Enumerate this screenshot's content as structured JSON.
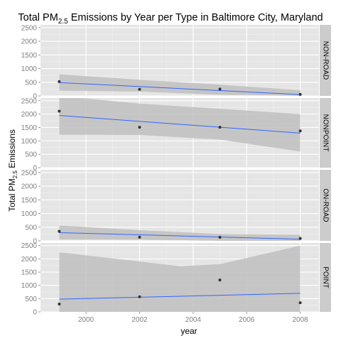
{
  "chart_data": {
    "type": "scatter",
    "title": {
      "prefix": "Total PM",
      "subscript": "2.5",
      "suffix": " Emissions by Year per Type in Baltimore City, Maryland"
    },
    "xlabel": "year",
    "ylabel": {
      "prefix": "Total PM",
      "subscript": "2.5",
      "suffix": " Emissions"
    },
    "x_ticks": [
      2000,
      2002,
      2004,
      2006,
      2008
    ],
    "xlim": [
      1998.3,
      2008.7
    ],
    "ylim": [
      0,
      2600
    ],
    "y_ticks": [
      0,
      500,
      1000,
      1500,
      2000,
      2500
    ],
    "grid": true,
    "facet_strip": "right",
    "colors": {
      "panel_bg": "#e5e5e5",
      "grid_major": "#ffffff",
      "grid_minor": "#f2f2f2",
      "strip_bg": "#cccccc",
      "ribbon": "#c0c0c0",
      "line": "#3366ff",
      "point": "#333333",
      "axis_text": "#7f7f7f"
    },
    "panels": [
      {
        "name": "NON-ROAD",
        "points": [
          {
            "x": 1999,
            "y": 523
          },
          {
            "x": 2002,
            "y": 241
          },
          {
            "x": 2005,
            "y": 249
          },
          {
            "x": 2008,
            "y": 56
          }
        ],
        "fit": [
          {
            "x": 1999,
            "y": 487
          },
          {
            "x": 2008,
            "y": 50
          }
        ],
        "band_upper": [
          {
            "x": 1999,
            "y": 790
          },
          {
            "x": 2002,
            "y": 590
          },
          {
            "x": 2005,
            "y": 410
          },
          {
            "x": 2008,
            "y": 210
          }
        ],
        "band_lower": [
          {
            "x": 1999,
            "y": 190
          },
          {
            "x": 2002,
            "y": 160
          },
          {
            "x": 2005,
            "y": 40
          },
          {
            "x": 2008,
            "y": 0
          }
        ]
      },
      {
        "name": "NONPOINT",
        "points": [
          {
            "x": 1999,
            "y": 2108
          },
          {
            "x": 2002,
            "y": 1510
          },
          {
            "x": 2005,
            "y": 1510
          },
          {
            "x": 2008,
            "y": 1373
          }
        ],
        "fit": [
          {
            "x": 1999,
            "y": 1950
          },
          {
            "x": 2008,
            "y": 1290
          }
        ],
        "band_upper": [
          {
            "x": 1999,
            "y": 2680
          },
          {
            "x": 2002,
            "y": 2390
          },
          {
            "x": 2005,
            "y": 2200
          },
          {
            "x": 2008,
            "y": 2000
          }
        ],
        "band_lower": [
          {
            "x": 1999,
            "y": 1230
          },
          {
            "x": 2002,
            "y": 1220
          },
          {
            "x": 2005,
            "y": 1050
          },
          {
            "x": 2008,
            "y": 600
          }
        ]
      },
      {
        "name": "ON-ROAD",
        "points": [
          {
            "x": 1999,
            "y": 347
          },
          {
            "x": 2002,
            "y": 134
          },
          {
            "x": 2005,
            "y": 130
          },
          {
            "x": 2008,
            "y": 88
          }
        ],
        "fit": [
          {
            "x": 1999,
            "y": 300
          },
          {
            "x": 2008,
            "y": 60
          }
        ],
        "band_upper": [
          {
            "x": 1999,
            "y": 560
          },
          {
            "x": 2002,
            "y": 390
          },
          {
            "x": 2005,
            "y": 250
          },
          {
            "x": 2008,
            "y": 220
          }
        ],
        "band_lower": [
          {
            "x": 1999,
            "y": 50
          },
          {
            "x": 2002,
            "y": 40
          },
          {
            "x": 2005,
            "y": 0
          },
          {
            "x": 2008,
            "y": 0
          }
        ]
      },
      {
        "name": "POINT",
        "points": [
          {
            "x": 1999,
            "y": 296
          },
          {
            "x": 2002,
            "y": 569
          },
          {
            "x": 2005,
            "y": 1202
          },
          {
            "x": 2008,
            "y": 345
          }
        ],
        "fit": [
          {
            "x": 1999,
            "y": 480
          },
          {
            "x": 2008,
            "y": 700
          }
        ],
        "band_upper": [
          {
            "x": 1999,
            "y": 2250
          },
          {
            "x": 2002,
            "y": 1900
          },
          {
            "x": 2003.5,
            "y": 1720
          },
          {
            "x": 2005,
            "y": 1800
          },
          {
            "x": 2008,
            "y": 2500
          }
        ],
        "band_lower": [
          {
            "x": 1999,
            "y": 0
          },
          {
            "x": 2008,
            "y": 0
          }
        ]
      }
    ]
  }
}
